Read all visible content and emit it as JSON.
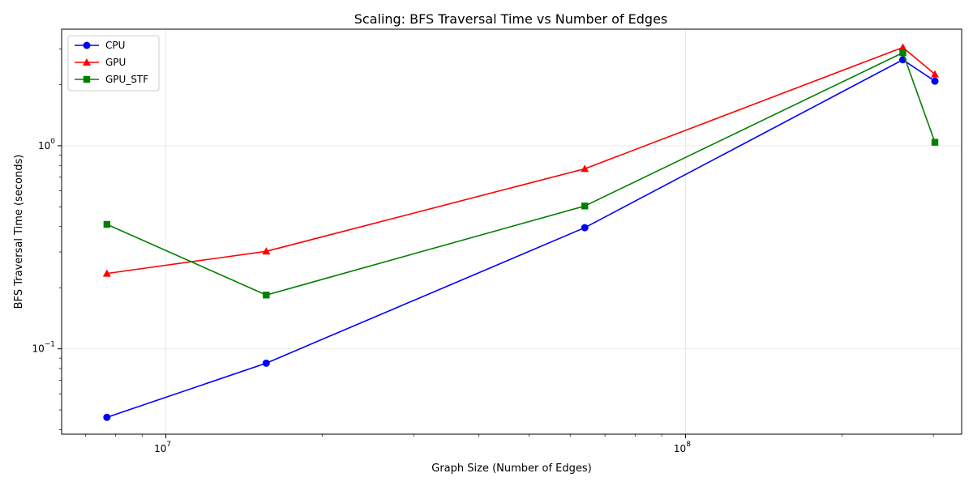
{
  "chart_data": {
    "type": "line",
    "title": "Scaling: BFS Traversal Time vs Number of Edges",
    "xlabel": "Graph Size (Number of Edges)",
    "ylabel": "BFS Traversal Time (seconds)",
    "xscale": "log",
    "yscale": "log",
    "xlim": [
      6300000,
      340000000
    ],
    "ylim": [
      0.038,
      3.75
    ],
    "grid": true,
    "legend": "top-left",
    "x_ticks": [
      {
        "value": 10000000,
        "base": "10",
        "exp": "7"
      },
      {
        "value": 100000000,
        "base": "10",
        "exp": "8"
      }
    ],
    "y_ticks": [
      {
        "value": 0.1,
        "base": "10",
        "exp": "−1"
      },
      {
        "value": 1,
        "base": "10",
        "exp": "0"
      }
    ],
    "x": [
      7700000,
      15600000,
      64000000,
      262000000,
      302000000
    ],
    "series": [
      {
        "name": "CPU",
        "color": "#0000ff",
        "marker": "circle",
        "values": [
          0.046,
          0.085,
          0.395,
          2.65,
          2.08
        ]
      },
      {
        "name": "GPU",
        "color": "#ff0000",
        "marker": "triangle",
        "values": [
          0.235,
          0.302,
          0.77,
          3.05,
          2.25
        ]
      },
      {
        "name": "GPU_STF",
        "color": "#008000",
        "marker": "square",
        "values": [
          0.41,
          0.184,
          0.505,
          2.87,
          1.04
        ]
      }
    ]
  }
}
